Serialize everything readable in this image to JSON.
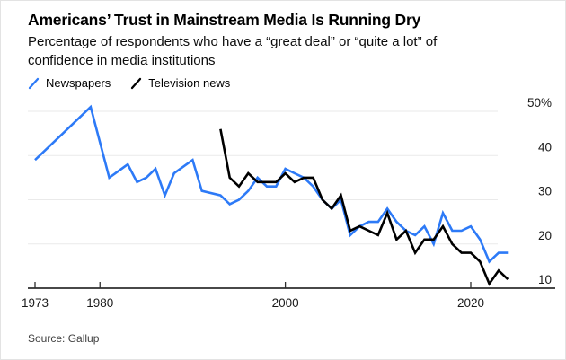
{
  "header": {
    "title": "Americans’ Trust in Mainstream Media Is Running Dry",
    "subtitle": "Percentage of respondents who have a “great deal” or “quite a lot” of confidence in media institutions"
  },
  "legend": {
    "items": [
      {
        "label": "Newspapers",
        "color": "#2d7af7"
      },
      {
        "label": "Television news",
        "color": "#000000"
      }
    ]
  },
  "footer": {
    "source": "Source: Gallup"
  },
  "chart_data": {
    "type": "line",
    "title": "Americans’ Trust in Mainstream Media Is Running Dry",
    "subtitle": "Percentage of respondents who have a “great deal” or “quite a lot” of confidence in media institutions",
    "xlabel": "",
    "ylabel": "",
    "x_axis": {
      "range": [
        1972.2,
        2029
      ],
      "ticks": [
        {
          "value": 1973,
          "label": "1973"
        },
        {
          "value": 1980,
          "label": "1980"
        },
        {
          "value": 2000,
          "label": "2000"
        },
        {
          "value": 2020,
          "label": "2020"
        }
      ]
    },
    "y_axis": {
      "range": [
        10,
        50
      ],
      "unit": "%",
      "ticks": [
        {
          "value": 50,
          "label": "50%",
          "grid": true
        },
        {
          "value": 40,
          "label": "40",
          "grid": true
        },
        {
          "value": 30,
          "label": "30",
          "grid": true
        },
        {
          "value": 20,
          "label": "20",
          "grid": true
        },
        {
          "value": 10,
          "label": "10",
          "grid": false
        }
      ]
    },
    "grid": "horizontal",
    "legend_position": "top-left",
    "series": [
      {
        "name": "Newspapers",
        "color": "#2d7af7",
        "points": [
          [
            1973,
            39
          ],
          [
            1979,
            51
          ],
          [
            1981,
            35
          ],
          [
            1983,
            38
          ],
          [
            1984,
            34
          ],
          [
            1985,
            35
          ],
          [
            1986,
            37
          ],
          [
            1987,
            31
          ],
          [
            1988,
            36
          ],
          [
            1990,
            39
          ],
          [
            1991,
            32
          ],
          [
            1993,
            31
          ],
          [
            1994,
            29
          ],
          [
            1995,
            30
          ],
          [
            1996,
            32
          ],
          [
            1997,
            35
          ],
          [
            1998,
            33
          ],
          [
            1999,
            33
          ],
          [
            2000,
            37
          ],
          [
            2001,
            36
          ],
          [
            2002,
            35
          ],
          [
            2003,
            33
          ],
          [
            2004,
            30
          ],
          [
            2005,
            28
          ],
          [
            2006,
            30
          ],
          [
            2007,
            22
          ],
          [
            2008,
            24
          ],
          [
            2009,
            25
          ],
          [
            2010,
            25
          ],
          [
            2011,
            28
          ],
          [
            2012,
            25
          ],
          [
            2013,
            23
          ],
          [
            2014,
            22
          ],
          [
            2015,
            24
          ],
          [
            2016,
            20
          ],
          [
            2017,
            27
          ],
          [
            2018,
            23
          ],
          [
            2019,
            23
          ],
          [
            2020,
            24
          ],
          [
            2021,
            21
          ],
          [
            2022,
            16
          ],
          [
            2023,
            18
          ],
          [
            2024,
            18
          ]
        ]
      },
      {
        "name": "Television news",
        "color": "#000000",
        "points": [
          [
            1993,
            46
          ],
          [
            1994,
            35
          ],
          [
            1995,
            33
          ],
          [
            1996,
            36
          ],
          [
            1997,
            34
          ],
          [
            1998,
            34
          ],
          [
            1999,
            34
          ],
          [
            2000,
            36
          ],
          [
            2001,
            34
          ],
          [
            2002,
            35
          ],
          [
            2003,
            35
          ],
          [
            2004,
            30
          ],
          [
            2005,
            28
          ],
          [
            2006,
            31
          ],
          [
            2007,
            23
          ],
          [
            2008,
            24
          ],
          [
            2009,
            23
          ],
          [
            2010,
            22
          ],
          [
            2011,
            27
          ],
          [
            2012,
            21
          ],
          [
            2013,
            23
          ],
          [
            2014,
            18
          ],
          [
            2015,
            21
          ],
          [
            2016,
            21
          ],
          [
            2017,
            24
          ],
          [
            2018,
            20
          ],
          [
            2019,
            18
          ],
          [
            2020,
            18
          ],
          [
            2021,
            16
          ],
          [
            2022,
            11
          ],
          [
            2023,
            14
          ],
          [
            2024,
            12
          ]
        ]
      }
    ]
  }
}
